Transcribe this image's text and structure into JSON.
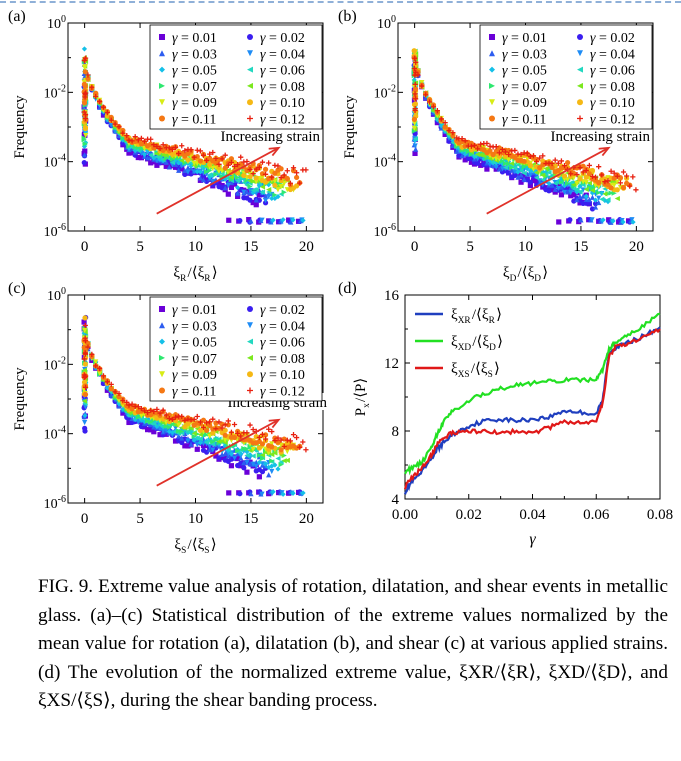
{
  "caption": {
    "label": "FIG. 9.",
    "text": "Extreme value analysis of rotation, dilatation, and shear events in metallic glass. (a)–(c) Statistical distribution of the extreme values normalized by the mean value for rotation (a), dilatation (b), and shear (c) at various applied strains. (d) The evolution of the normalized extreme value, ξXR/⟨ξR⟩, ξXD/⟨ξD⟩, and ξXS/⟨ξS⟩, during the shear banding process."
  },
  "legend_gamma_labels": [
    "γ = 0.01",
    "γ = 0.02",
    "γ = 0.03",
    "γ = 0.04",
    "γ = 0.05",
    "γ = 0.06",
    "γ = 0.07",
    "γ = 0.08",
    "γ = 0.09",
    "γ = 0.10",
    "γ = 0.11",
    "γ = 0.12"
  ],
  "colors": {
    "gamma": [
      "#6a00d8",
      "#3a1ef0",
      "#2d5df0",
      "#1e8cf5",
      "#14c0e8",
      "#22d8c0",
      "#2ee870",
      "#7be81e",
      "#d8ec14",
      "#f5b814",
      "#f57814",
      "#e82010"
    ],
    "xr": "#1f3fbf",
    "xd": "#22e022",
    "xs": "#e01818",
    "arrow": "#e0322a"
  },
  "chart_data": [
    {
      "panel": "(a)",
      "type": "scatter",
      "log_y": true,
      "xlabel": "ξR/⟨ξR⟩",
      "ylabel": "Frequency",
      "xlim": [
        -1.5,
        21.5
      ],
      "ylim_exp": [
        -6,
        0
      ],
      "x_ticks": [
        "0",
        "5",
        "10",
        "15",
        "20"
      ],
      "y_ticks": [
        "10⁻⁶",
        "10⁻⁴",
        "10⁻²",
        "10⁰"
      ],
      "annotation": "Increasing strain",
      "series_gamma": [
        0.01,
        0.02,
        0.03,
        0.04,
        0.05,
        0.06,
        0.07,
        0.08,
        0.09,
        0.1,
        0.11,
        0.12
      ],
      "model": {
        "peak_log": -0.7,
        "tail_start_log": -3.3,
        "tail_end_log_low": -5.6,
        "tail_end_log_high": -4.5
      }
    },
    {
      "panel": "(b)",
      "type": "scatter",
      "log_y": true,
      "xlabel": "ξD/⟨ξD⟩",
      "ylabel": "Frequency",
      "xlim": [
        -1.5,
        21.5
      ],
      "ylim_exp": [
        -6,
        0
      ],
      "x_ticks": [
        "0",
        "5",
        "10",
        "15",
        "20"
      ],
      "y_ticks": [
        "10⁻⁶",
        "10⁻⁴",
        "10⁻²",
        "10⁰"
      ],
      "annotation": "Increasing strain",
      "series_gamma": [
        0.01,
        0.02,
        0.03,
        0.04,
        0.05,
        0.06,
        0.07,
        0.08,
        0.09,
        0.1,
        0.11,
        0.12
      ],
      "model": {
        "peak_log": -0.5,
        "tail_start_log": -3.4,
        "tail_end_log_low": -5.7,
        "tail_end_log_high": -4.6
      }
    },
    {
      "panel": "(c)",
      "type": "scatter",
      "log_y": true,
      "xlabel": "ξS/⟨ξS⟩",
      "ylabel": "Frequency",
      "xlim": [
        -1.5,
        21.5
      ],
      "ylim_exp": [
        -6,
        0
      ],
      "x_ticks": [
        "0",
        "5",
        "10",
        "15",
        "20"
      ],
      "y_ticks": [
        "10⁻⁶",
        "10⁻⁴",
        "10⁻²",
        "10⁰"
      ],
      "annotation": "Increasing strain",
      "series_gamma": [
        0.01,
        0.02,
        0.03,
        0.04,
        0.05,
        0.06,
        0.07,
        0.08,
        0.09,
        0.1,
        0.11,
        0.12
      ],
      "model": {
        "peak_log": -0.6,
        "tail_start_log": -3.2,
        "tail_end_log_low": -5.6,
        "tail_end_log_high": -4.3
      }
    },
    {
      "panel": "(d)",
      "type": "line",
      "xlabel": "γ",
      "ylabel": "Px/⟨P⟩",
      "xlim": [
        0,
        0.08
      ],
      "ylim": [
        4,
        16
      ],
      "x_ticks": [
        "0.00",
        "0.02",
        "0.04",
        "0.06",
        "0.08"
      ],
      "y_ticks": [
        "4",
        "8",
        "12",
        "16"
      ],
      "series": [
        {
          "name": "ξXR/⟨ξR⟩",
          "color_key": "xr",
          "x": [
            0.0,
            0.002,
            0.005,
            0.008,
            0.01,
            0.012,
            0.015,
            0.02,
            0.025,
            0.03,
            0.035,
            0.04,
            0.045,
            0.05,
            0.055,
            0.06,
            0.062,
            0.064,
            0.066,
            0.07,
            0.075,
            0.08
          ],
          "y": [
            4.4,
            5.0,
            5.5,
            6.3,
            6.9,
            7.3,
            7.8,
            8.3,
            8.6,
            8.7,
            8.6,
            8.7,
            8.8,
            9.2,
            9.1,
            9.0,
            9.8,
            12.6,
            12.9,
            13.2,
            13.6,
            14.1
          ]
        },
        {
          "name": "ξXD/⟨ξD⟩",
          "color_key": "xd",
          "x": [
            0.0,
            0.002,
            0.005,
            0.008,
            0.01,
            0.012,
            0.015,
            0.02,
            0.025,
            0.03,
            0.035,
            0.04,
            0.045,
            0.05,
            0.055,
            0.06,
            0.062,
            0.064,
            0.066,
            0.07,
            0.075,
            0.08
          ],
          "y": [
            5.6,
            5.8,
            6.1,
            6.9,
            7.8,
            8.5,
            9.2,
            9.8,
            10.2,
            10.5,
            10.7,
            10.8,
            10.9,
            11.0,
            11.0,
            11.0,
            11.6,
            12.8,
            13.2,
            13.6,
            14.2,
            14.9
          ]
        },
        {
          "name": "ξXS/⟨ξS⟩",
          "color_key": "xs",
          "x": [
            0.0,
            0.002,
            0.005,
            0.008,
            0.01,
            0.012,
            0.015,
            0.02,
            0.025,
            0.03,
            0.035,
            0.04,
            0.045,
            0.05,
            0.055,
            0.06,
            0.062,
            0.064,
            0.066,
            0.07,
            0.075,
            0.08
          ],
          "y": [
            4.7,
            5.2,
            5.8,
            6.5,
            7.2,
            7.6,
            7.9,
            8.0,
            8.0,
            7.9,
            8.0,
            7.9,
            8.2,
            8.5,
            8.5,
            8.6,
            9.6,
            12.4,
            12.9,
            13.1,
            13.5,
            14.0
          ]
        }
      ]
    }
  ]
}
